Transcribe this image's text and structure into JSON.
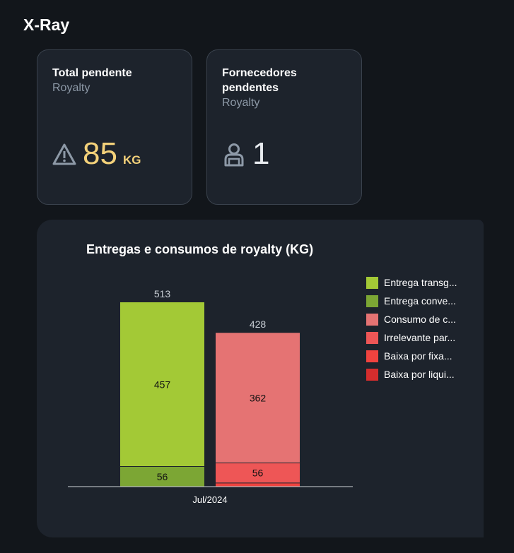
{
  "page": {
    "title": "X-Ray"
  },
  "cards": [
    {
      "title": "Total pendente",
      "subtitle": "Royalty",
      "icon": "warning-icon",
      "value": "85",
      "unit": "KG",
      "color": "#f3d17a"
    },
    {
      "title": "Fornecedores pendentes",
      "subtitle": "Royalty",
      "icon": "supplier-icon",
      "value": "1",
      "unit": "",
      "color": "#e8ecf0"
    }
  ],
  "chart_data": {
    "type": "bar",
    "stacked": true,
    "title": "Entregas e consumos de royalty (KG)",
    "categories": [
      "Jul/2024"
    ],
    "ylim": [
      0,
      513
    ],
    "grid": false,
    "legend_position": "right",
    "legend": [
      {
        "label": "Entrega transg...",
        "color": "#a3c936"
      },
      {
        "label": "Entrega conve...",
        "color": "#7ca634"
      },
      {
        "label": "Consumo de c...",
        "color": "#e57373"
      },
      {
        "label": "Irrelevante par...",
        "color": "#ee5656"
      },
      {
        "label": "Baixa por fixa...",
        "color": "#f0433f"
      },
      {
        "label": "Baixa por liqui...",
        "color": "#d42d2d"
      }
    ],
    "stacks": [
      {
        "total": 513,
        "segments": [
          {
            "value": 56,
            "color": "#7ca634",
            "label": "56"
          },
          {
            "value": 457,
            "color": "#a3c936",
            "label": "457"
          }
        ]
      },
      {
        "total": 428,
        "segments": [
          {
            "value": 10,
            "color": "#f0433f",
            "label": ""
          },
          {
            "value": 56,
            "color": "#ee5656",
            "label": "56"
          },
          {
            "value": 362,
            "color": "#e57373",
            "label": "362"
          }
        ]
      }
    ]
  }
}
